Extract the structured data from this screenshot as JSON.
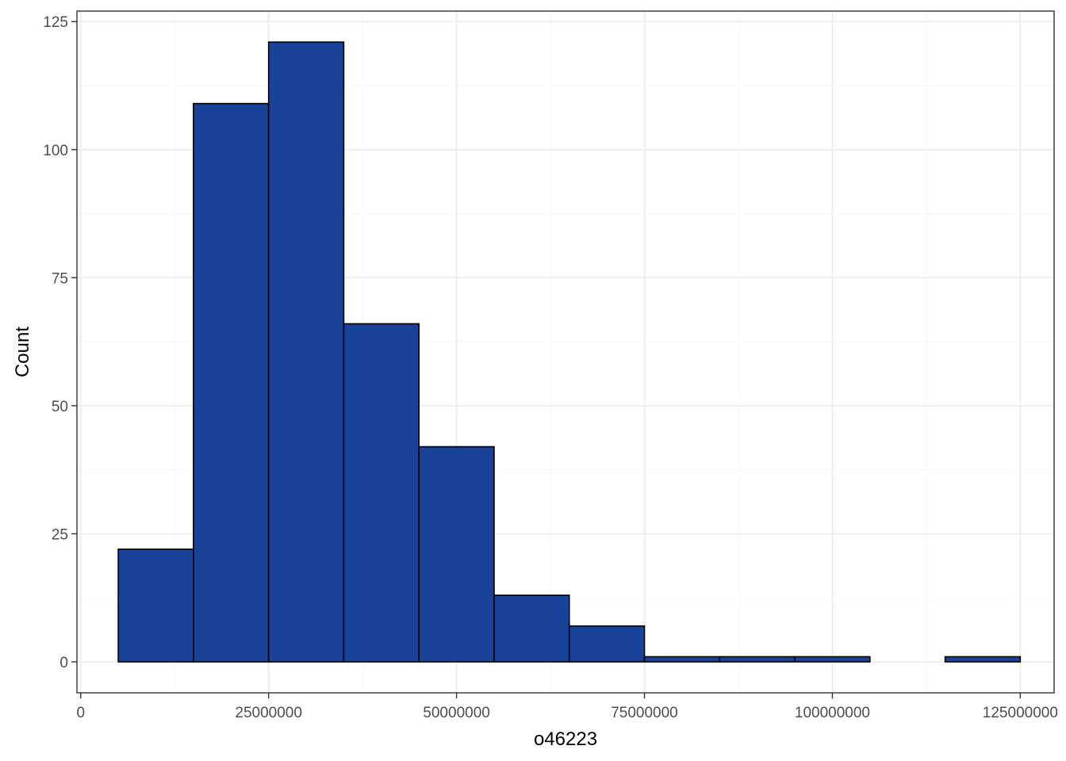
{
  "chart_data": {
    "type": "bar",
    "subtype": "histogram",
    "title": "",
    "xlabel": "o46223",
    "ylabel": "Count",
    "bins": [
      {
        "x0": 5000000,
        "x1": 15000000,
        "count": 22
      },
      {
        "x0": 15000000,
        "x1": 25000000,
        "count": 109
      },
      {
        "x0": 25000000,
        "x1": 35000000,
        "count": 121
      },
      {
        "x0": 35000000,
        "x1": 45000000,
        "count": 66
      },
      {
        "x0": 45000000,
        "x1": 55000000,
        "count": 42
      },
      {
        "x0": 55000000,
        "x1": 65000000,
        "count": 13
      },
      {
        "x0": 65000000,
        "x1": 75000000,
        "count": 7
      },
      {
        "x0": 75000000,
        "x1": 85000000,
        "count": 1
      },
      {
        "x0": 85000000,
        "x1": 95000000,
        "count": 1
      },
      {
        "x0": 95000000,
        "x1": 105000000,
        "count": 1
      },
      {
        "x0": 105000000,
        "x1": 115000000,
        "count": 0
      },
      {
        "x0": 115000000,
        "x1": 125000000,
        "count": 1
      }
    ],
    "xlim": [
      -500000,
      129500000
    ],
    "ylim": [
      -6.05,
      127.05
    ],
    "xticks": [
      0,
      25000000,
      50000000,
      75000000,
      100000000,
      125000000
    ],
    "xtick_labels": [
      "0",
      "25000000",
      "50000000",
      "75000000",
      "100000000",
      "125000000"
    ],
    "yticks": [
      0,
      25,
      50,
      75,
      100,
      125
    ],
    "ytick_labels": [
      "0",
      "25",
      "50",
      "75",
      "100",
      "125"
    ],
    "grid": true,
    "theme": "bw",
    "colors": {
      "bar_fill": "#184399",
      "bar_outline": "#000000",
      "grid_major": "#ebebeb",
      "grid_minor": "#f4f4f4",
      "panel_border": "#333333"
    }
  }
}
